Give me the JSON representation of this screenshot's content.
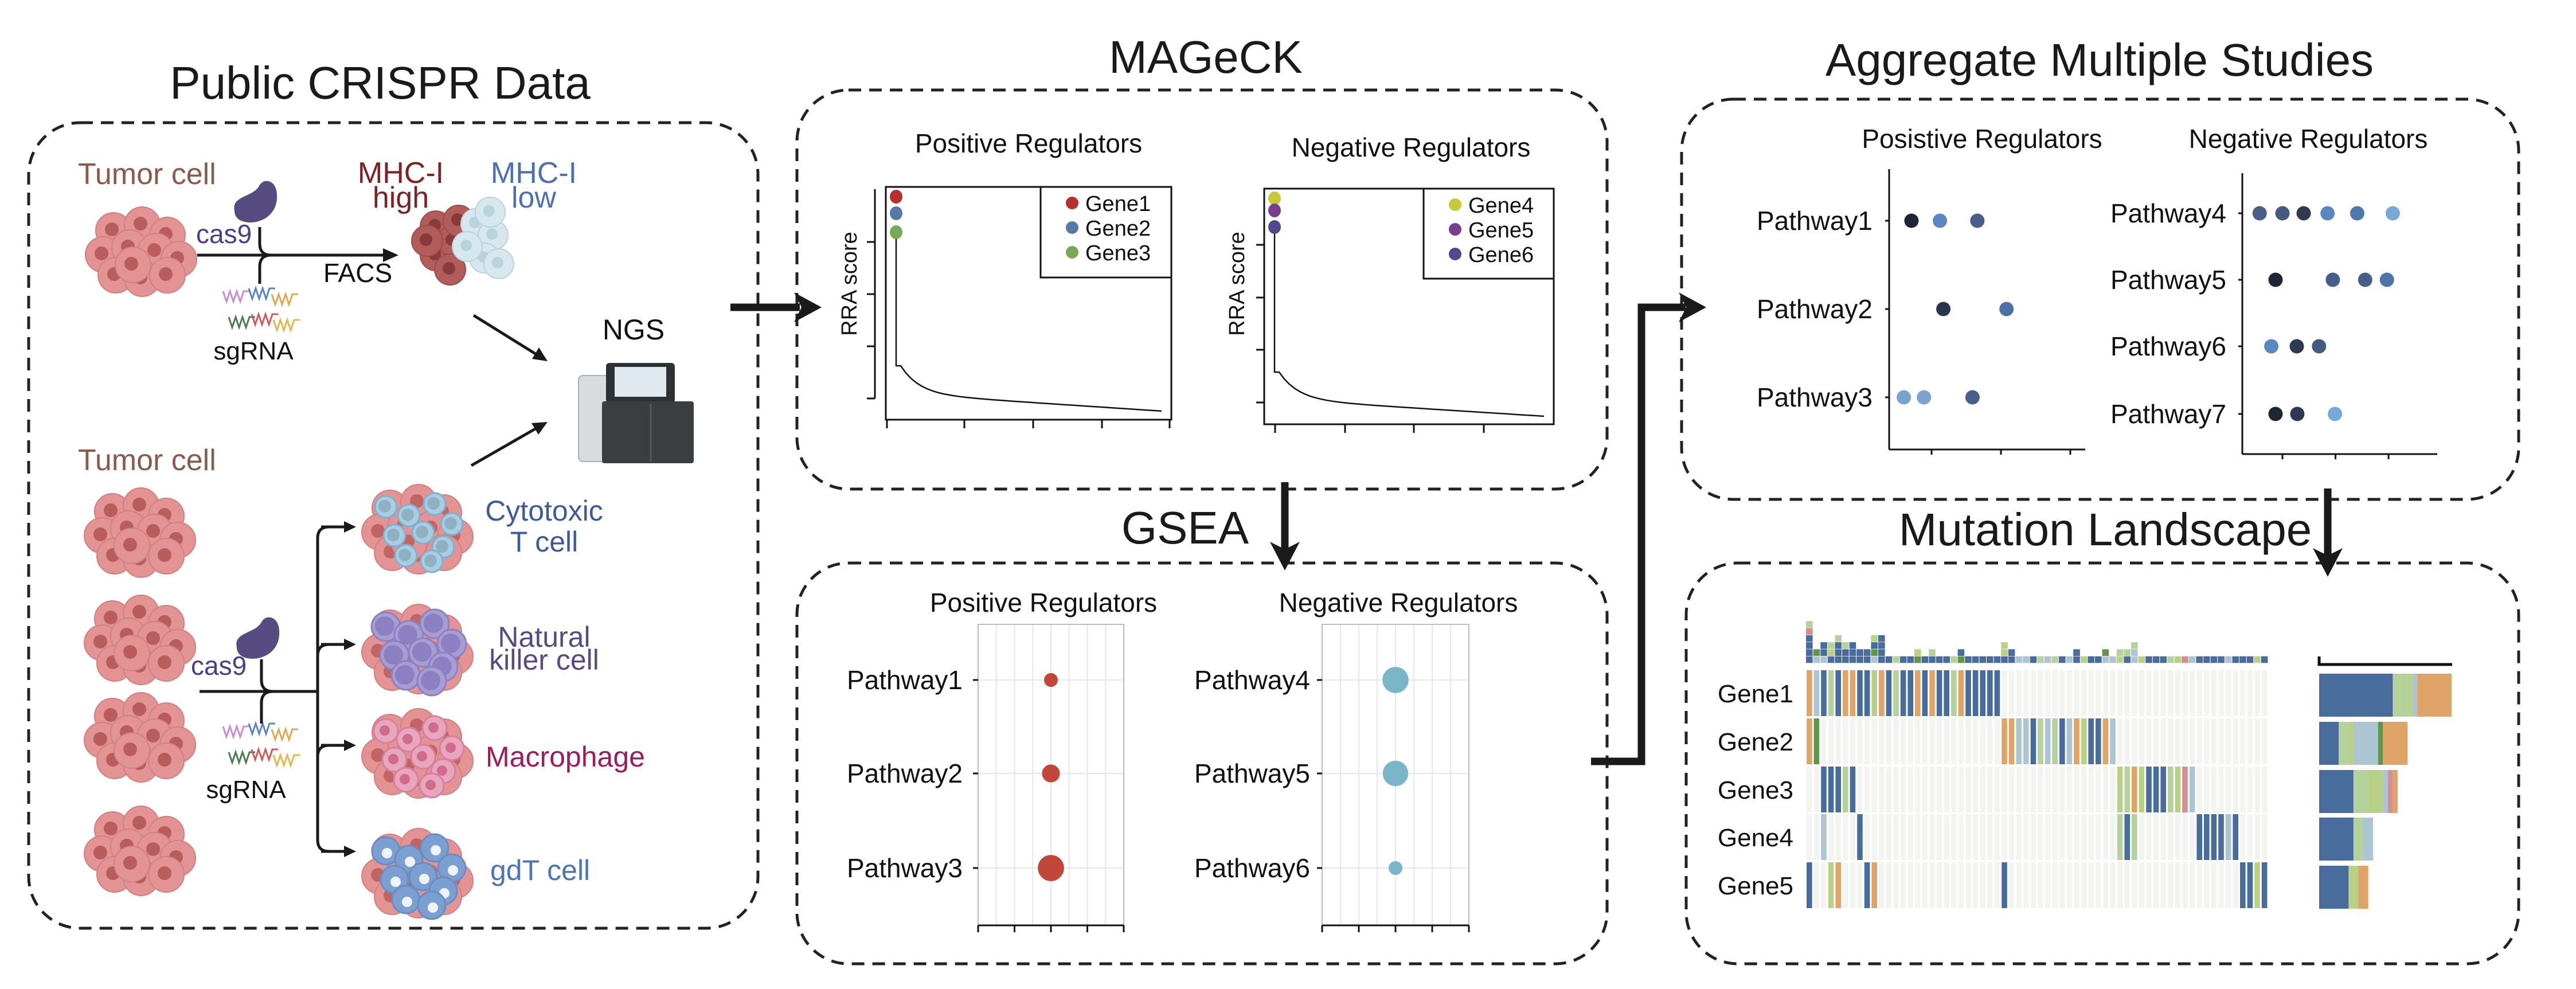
{
  "panels": {
    "crispr": {
      "title": "Public CRISPR Data",
      "screen1": {
        "tumor_label": "Tumor cell",
        "cas9_label": "cas9",
        "sgrna_label": "sgRNA",
        "facs_label": "FACS",
        "mhc_high": [
          "MHC-I",
          "high"
        ],
        "mhc_low": [
          "MHC-I",
          "low"
        ]
      },
      "ngs_label": "NGS",
      "screen2": {
        "tumor_label": "Tumor cell",
        "cas9_label": "cas9",
        "sgrna_label": "sgRNA",
        "immune_cells": [
          {
            "lines": [
              "Cytotoxic",
              "T cell"
            ],
            "color": "#3d5a9e",
            "type": "tcell"
          },
          {
            "lines": [
              "Natural",
              "killer cell"
            ],
            "color": "#574a85",
            "type": "nk"
          },
          {
            "lines": [
              "Macrophage"
            ],
            "color": "#9c1d5e",
            "type": "macrophage"
          },
          {
            "lines": [
              "gdT cell"
            ],
            "color": "#4e74b8",
            "type": "gdt"
          }
        ]
      },
      "colors": {
        "tumor_text": "#8a5a4a",
        "cas9": "#564c82",
        "mhc_high": "#7a2424",
        "mhc_low": "#4e6fb0"
      }
    },
    "mageck": {
      "title": "MAGeCK",
      "plots": [
        {
          "title": "Positive Regulators",
          "ylabel": "RRA score",
          "genes": [
            {
              "name": "Gene1",
              "color": "#b5302f"
            },
            {
              "name": "Gene2",
              "color": "#5878a8"
            },
            {
              "name": "Gene3",
              "color": "#78aa55"
            }
          ]
        },
        {
          "title": "Negative Regulators",
          "ylabel": "RRA score",
          "genes": [
            {
              "name": "Gene4",
              "color": "#c9c83a"
            },
            {
              "name": "Gene5",
              "color": "#7a3d8c"
            },
            {
              "name": "Gene6",
              "color": "#4d4a90"
            }
          ]
        }
      ]
    },
    "gsea": {
      "title": "GSEA",
      "plots": [
        {
          "title": "Positive Regulators",
          "color": "#c0473a",
          "rows": [
            {
              "label": "Pathway1",
              "x": 4,
              "size": 1
            },
            {
              "label": "Pathway2",
              "x": 4,
              "size": 1.3
            },
            {
              "label": "Pathway3",
              "x": 4,
              "size": 1.9
            }
          ]
        },
        {
          "title": "Negative Regulators",
          "color": "#7ab6c8",
          "rows": [
            {
              "label": "Pathway4",
              "x": 4,
              "size": 1.9
            },
            {
              "label": "Pathway5",
              "x": 4,
              "size": 1.85
            },
            {
              "label": "Pathway6",
              "x": 4,
              "size": 1
            }
          ]
        }
      ]
    },
    "aggregate": {
      "title": "Aggregate Multiple Studies",
      "plots": [
        {
          "title": "Posistive Regulators",
          "rows": [
            {
              "label": "Pathway1",
              "dots": [
                {
                  "x": 0.71,
                  "c": "#1e2636"
                },
                {
                  "x": 1.12,
                  "c": "#5b87c0"
                },
                {
                  "x": 1.66,
                  "c": "#475f8a"
                }
              ]
            },
            {
              "label": "Pathway2",
              "dots": [
                {
                  "x": 1.17,
                  "c": "#2a3550"
                },
                {
                  "x": 2.08,
                  "c": "#4a70a5"
                }
              ]
            },
            {
              "label": "Pathway3",
              "dots": [
                {
                  "x": 0.6,
                  "c": "#7aa3d0"
                },
                {
                  "x": 0.89,
                  "c": "#7aa3d0"
                },
                {
                  "x": 1.59,
                  "c": "#475f8a"
                }
              ]
            }
          ]
        },
        {
          "title": "Negative Regulators",
          "rows": [
            {
              "label": "Pathway4",
              "dots": [
                {
                  "x": 0.57,
                  "c": "#4a5f85"
                },
                {
                  "x": 1.0,
                  "c": "#465a80"
                },
                {
                  "x": 1.4,
                  "c": "#2d3a52"
                },
                {
                  "x": 1.85,
                  "c": "#5b87c0"
                },
                {
                  "x": 2.41,
                  "c": "#4f77ac"
                },
                {
                  "x": 3.08,
                  "c": "#7aa8d5"
                }
              ]
            },
            {
              "label": "Pathway5",
              "dots": [
                {
                  "x": 0.87,
                  "c": "#1e2633"
                },
                {
                  "x": 1.95,
                  "c": "#465f88"
                },
                {
                  "x": 2.56,
                  "c": "#465f88"
                },
                {
                  "x": 2.97,
                  "c": "#4f74ab"
                }
              ]
            },
            {
              "label": "Pathway6",
              "dots": [
                {
                  "x": 0.79,
                  "c": "#5b87c0"
                },
                {
                  "x": 1.27,
                  "c": "#2d3a52"
                },
                {
                  "x": 1.69,
                  "c": "#465a80"
                }
              ]
            },
            {
              "label": "Pathway7",
              "dots": [
                {
                  "x": 0.87,
                  "c": "#1e2633"
                },
                {
                  "x": 1.28,
                  "c": "#2d3a52"
                },
                {
                  "x": 1.99,
                  "c": "#7aa8d5"
                }
              ]
            }
          ]
        }
      ]
    },
    "mutation": {
      "title": "Mutation Landscape",
      "palette": {
        "B": "#486c9c",
        "L": "#adc5d3",
        "G": "#b5d19c",
        "Y": "#b9d186",
        "D": "#5f9649",
        "O": "#e0a468",
        "R": "#d68e8e",
        ".": "#f3f3f2"
      },
      "genes": [
        {
          "name": "Gene1",
          "cells": "OLBGBOOBBYOBGBBOBOBBGOBBBBB....................................."
        },
        {
          "name": "Gene2",
          "cells": "OD.........................OOLLBGLGBLOYBBOL....................."
        },
        {
          "name": "Gene3",
          "cells": "..BBBGB....................................YGOYBBBGYRL.........."
        },
        {
          "name": "Gene4",
          "cells": "..L....B...................................GBG........BBBBLB...."
        },
        {
          "name": "Gene5",
          "cells": "B..YO...BO.................B................................BBYB"
        }
      ],
      "top_bars": [
        "BBBBRG",
        "LD",
        "LBB",
        "BYG",
        "BBBG",
        "BBG",
        "BBB",
        "BB",
        "BB",
        "LDBY",
        "BBBB",
        "B",
        "G",
        "B",
        "B",
        "DY",
        "B",
        "BG",
        "B",
        "B",
        "G",
        "DB",
        "B",
        "B",
        "B",
        "B",
        "B",
        "BYY",
        "BB",
        "L",
        "L",
        "B",
        "G",
        "L",
        "G",
        "B",
        "L",
        "BB",
        "Y",
        "B",
        "B",
        "LD",
        "L",
        "YG",
        "BG",
        "LLG",
        "Y",
        "B",
        "B",
        "B",
        "G",
        "Y",
        "R",
        "L",
        "B",
        "B",
        "B",
        "B",
        "L",
        "B",
        "B",
        "B",
        "Y",
        "B"
      ],
      "side_order": [
        "B",
        "G",
        "Y",
        "L",
        "D",
        "R",
        "O"
      ]
    }
  }
}
